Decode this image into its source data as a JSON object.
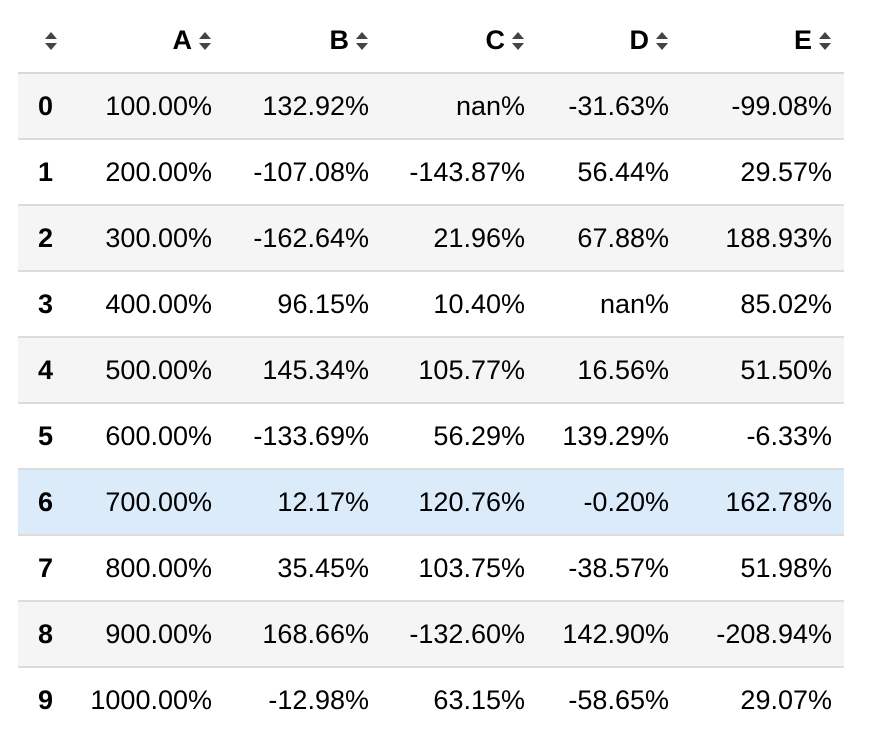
{
  "table": {
    "columns": [
      "A",
      "B",
      "C",
      "D",
      "E"
    ],
    "highlighted_row": 6,
    "rows": [
      {
        "index": "0",
        "values": [
          "100.00%",
          "132.92%",
          "nan%",
          "-31.63%",
          "-99.08%"
        ]
      },
      {
        "index": "1",
        "values": [
          "200.00%",
          "-107.08%",
          "-143.87%",
          "56.44%",
          "29.57%"
        ]
      },
      {
        "index": "2",
        "values": [
          "300.00%",
          "-162.64%",
          "21.96%",
          "67.88%",
          "188.93%"
        ]
      },
      {
        "index": "3",
        "values": [
          "400.00%",
          "96.15%",
          "10.40%",
          "nan%",
          "85.02%"
        ]
      },
      {
        "index": "4",
        "values": [
          "500.00%",
          "145.34%",
          "105.77%",
          "16.56%",
          "51.50%"
        ]
      },
      {
        "index": "5",
        "values": [
          "600.00%",
          "-133.69%",
          "56.29%",
          "139.29%",
          "-6.33%"
        ]
      },
      {
        "index": "6",
        "values": [
          "700.00%",
          "12.17%",
          "120.76%",
          "-0.20%",
          "162.78%"
        ]
      },
      {
        "index": "7",
        "values": [
          "800.00%",
          "35.45%",
          "103.75%",
          "-38.57%",
          "51.98%"
        ]
      },
      {
        "index": "8",
        "values": [
          "900.00%",
          "168.66%",
          "-132.60%",
          "142.90%",
          "-208.94%"
        ]
      },
      {
        "index": "9",
        "values": [
          "1000.00%",
          "-12.98%",
          "63.15%",
          "-58.65%",
          "29.07%"
        ]
      }
    ]
  },
  "colors": {
    "row_stripe": "#f5f5f5",
    "row_hover": "#dcebfa",
    "border": "#dcdcdc",
    "sort_icon": "#444444"
  },
  "icons": {
    "sort": "sort-arrows-icon"
  }
}
